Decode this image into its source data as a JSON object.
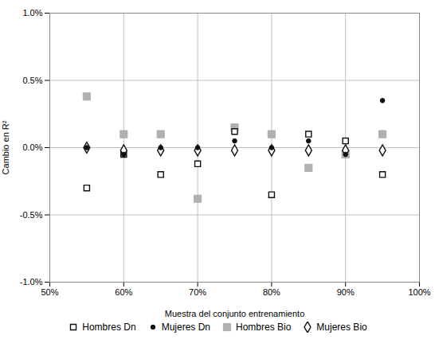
{
  "chart_data": {
    "type": "scatter",
    "xlabel": "Muestra del conjunto entrenamiento",
    "ylabel": "Cambio en R²",
    "x": [
      0.55,
      0.6,
      0.65,
      0.7,
      0.75,
      0.8,
      0.85,
      0.9,
      0.95
    ],
    "series": [
      {
        "name": "Hombres Dn",
        "color": "#111111",
        "marker": "open_square",
        "values": [
          -0.003,
          -0.0005,
          -0.002,
          -0.0012,
          0.0012,
          -0.0035,
          0.001,
          0.0005,
          -0.002
        ]
      },
      {
        "name": "Mujeres Dn",
        "color": "#111111",
        "marker": "circle",
        "values": [
          0.0,
          -0.0005,
          0.0,
          0.0,
          0.0005,
          0.0,
          0.0005,
          -0.0005,
          0.0035
        ]
      },
      {
        "name": "Hombres Bio",
        "color": "#b0b0b0",
        "marker": "square",
        "values": [
          0.0038,
          0.001,
          0.001,
          -0.0038,
          0.0015,
          0.001,
          -0.0015,
          -0.0005,
          0.001
        ]
      },
      {
        "name": "Mujeres Bio",
        "color": "#111111",
        "marker": "open_diamond",
        "values": [
          0.0,
          -0.0002,
          -0.0002,
          -0.0002,
          -0.0002,
          -0.0002,
          -0.0002,
          -0.0002,
          -0.0002
        ]
      }
    ],
    "xlim": [
      0.5,
      1.0
    ],
    "ylim": [
      -0.01,
      0.01
    ],
    "xticks": [
      {
        "value": 0.5,
        "label": "50%"
      },
      {
        "value": 0.6,
        "label": "60%"
      },
      {
        "value": 0.7,
        "label": "70%"
      },
      {
        "value": 0.8,
        "label": "80%"
      },
      {
        "value": 0.9,
        "label": "90%"
      },
      {
        "value": 1.0,
        "label": "100%"
      }
    ],
    "yticks": [
      {
        "value": -0.01,
        "label": "-1.0%"
      },
      {
        "value": -0.005,
        "label": "-0.5%"
      },
      {
        "value": 0.0,
        "label": "0.0%"
      },
      {
        "value": 0.005,
        "label": "0.5%"
      },
      {
        "value": 0.01,
        "label": "1.0%"
      }
    ],
    "grid": true,
    "legend": "bottom"
  }
}
